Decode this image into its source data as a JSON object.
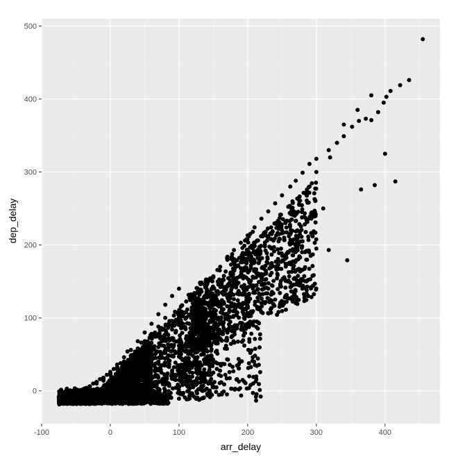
{
  "chart_data": {
    "type": "scatter",
    "title": "",
    "xlabel": "arr_delay",
    "ylabel": "dep_delay",
    "xlim": [
      -100,
      480
    ],
    "ylim": [
      -45,
      510
    ],
    "x_ticks": [
      -100,
      0,
      100,
      200,
      300,
      400
    ],
    "y_ticks": [
      0,
      100,
      200,
      300,
      400,
      500
    ],
    "x_tick_labels": [
      "-100",
      "0",
      "100",
      "200",
      "300",
      "400"
    ],
    "y_tick_labels": [
      "0",
      "100",
      "200",
      "300",
      "400",
      "500"
    ],
    "grid": true,
    "colors": {
      "panel": "#ebebeb",
      "grid_major": "#ffffff",
      "point": "#000000",
      "tick_text": "#4d4d4d"
    },
    "points_x": [
      455,
      435,
      422,
      408,
      402,
      398,
      390,
      380,
      372,
      362,
      352,
      340,
      330,
      318,
      300,
      290,
      280,
      270,
      262,
      250,
      240,
      230,
      220,
      210,
      200,
      190,
      180,
      170,
      160,
      150,
      140,
      130,
      120,
      110,
      100,
      90,
      80,
      70,
      60,
      50,
      40,
      30,
      20,
      10,
      0,
      -10,
      -20,
      -30,
      -40,
      -50,
      -60,
      -70,
      415,
      400,
      385,
      365,
      345,
      318,
      300,
      280,
      270,
      260,
      250,
      245,
      240,
      230,
      220,
      210,
      200,
      190,
      180,
      175,
      170,
      160,
      150,
      140,
      130,
      120,
      110,
      100,
      90,
      80,
      70,
      60,
      50,
      40,
      30,
      20,
      10,
      0,
      -10,
      -20,
      -30,
      -40,
      -50,
      -60,
      380,
      360,
      340,
      320,
      300,
      290,
      275,
      265,
      255,
      245,
      235,
      225,
      215,
      205,
      195,
      185,
      175,
      165,
      155,
      145,
      135,
      125,
      115,
      105,
      95,
      85,
      75,
      65,
      55,
      45,
      35,
      25,
      15,
      5,
      -5,
      -15,
      -25,
      -35,
      -45,
      -55,
      -65,
      310,
      295,
      285,
      275,
      265,
      255,
      245,
      235,
      225,
      215,
      205,
      195,
      185,
      175,
      165,
      155,
      145,
      135,
      125,
      115,
      105,
      95,
      85,
      75,
      65,
      55,
      45,
      35,
      25,
      15,
      5,
      -5,
      -15,
      -25,
      -35,
      -45,
      150,
      140,
      130,
      120,
      110,
      100,
      90,
      80,
      70,
      60,
      50,
      40,
      30,
      20,
      10,
      0,
      -10,
      -20,
      -30,
      -40,
      120,
      110,
      100,
      90,
      80,
      70,
      60,
      50,
      40,
      30,
      20,
      10,
      0,
      -10,
      -20,
      -30,
      100,
      90,
      80,
      70,
      60,
      50,
      40,
      30,
      20,
      10,
      0,
      -10,
      -20,
      -30,
      -40,
      -50,
      80,
      70,
      60,
      50,
      40,
      30,
      20,
      10,
      0,
      -10,
      -20,
      -30,
      -40,
      -50,
      -60,
      60,
      50,
      40,
      30,
      20,
      10,
      0,
      -10,
      -20,
      -30,
      -40,
      -50,
      -60,
      -70,
      40,
      30,
      20,
      10,
      0,
      -10,
      -20,
      -30,
      -40,
      -50,
      -60,
      -70,
      140,
      125,
      110,
      95,
      80,
      65,
      50,
      35,
      20,
      5,
      -10,
      -25,
      -40,
      170,
      155,
      140,
      125,
      110,
      95,
      80,
      65,
      50,
      35,
      20,
      5,
      -10
    ],
    "points_y": [
      482,
      426,
      419,
      411,
      403,
      395,
      382,
      371,
      373,
      370,
      362,
      349,
      340,
      330,
      318,
      311,
      299,
      288,
      280,
      268,
      257,
      246,
      236,
      224,
      213,
      203,
      193,
      182,
      170,
      157,
      144,
      132,
      120,
      108,
      96,
      84,
      72,
      60,
      50,
      40,
      30,
      22,
      14,
      8,
      3,
      0,
      -1,
      -2,
      -3,
      -4,
      -4,
      -4,
      287,
      325,
      282,
      276,
      179,
      193,
      195,
      205,
      208,
      212,
      216,
      108,
      125,
      140,
      160,
      178,
      192,
      168,
      148,
      160,
      130,
      118,
      95,
      85,
      65,
      55,
      45,
      35,
      25,
      18,
      12,
      8,
      4,
      2,
      0,
      -3,
      -6,
      -8,
      -10,
      -12,
      -14,
      -12,
      -10,
      -8,
      405,
      385,
      365,
      320,
      300,
      280,
      255,
      245,
      232,
      222,
      215,
      200,
      190,
      178,
      165,
      155,
      145,
      132,
      118,
      105,
      95,
      85,
      72,
      62,
      52,
      42,
      35,
      28,
      20,
      15,
      10,
      6,
      3,
      0,
      -2,
      -5,
      -8,
      -10,
      -12,
      -10,
      -5,
      250,
      240,
      270,
      262,
      245,
      230,
      205,
      175,
      198,
      160,
      183,
      145,
      171,
      130,
      152,
      118,
      136,
      104,
      120,
      92,
      106,
      80,
      92,
      68,
      80,
      56,
      66,
      46,
      54,
      38,
      30,
      22,
      16,
      10,
      4,
      0,
      25,
      22,
      30,
      38,
      20,
      15,
      28,
      10,
      18,
      5,
      12,
      0,
      8,
      -5,
      4,
      -8,
      0,
      -12,
      -10,
      -15,
      60,
      55,
      62,
      48,
      52,
      40,
      44,
      32,
      36,
      26,
      28,
      20,
      22,
      14,
      12,
      6,
      140,
      130,
      118,
      105,
      92,
      80,
      68,
      56,
      46,
      36,
      26,
      18,
      12,
      6,
      2,
      -2,
      100,
      88,
      78,
      68,
      58,
      48,
      40,
      32,
      24,
      16,
      10,
      4,
      0,
      -4,
      -6,
      72,
      64,
      56,
      48,
      40,
      32,
      24,
      18,
      12,
      6,
      2,
      -2,
      -6,
      -6,
      48,
      42,
      36,
      30,
      24,
      18,
      12,
      6,
      2,
      -2,
      -6,
      -8,
      40,
      30,
      22,
      15,
      10,
      6,
      4,
      2,
      0,
      -4,
      -8,
      -12,
      -14,
      70,
      55,
      45,
      35,
      28,
      20,
      14,
      8,
      4,
      0,
      -4,
      -8,
      -12
    ]
  }
}
